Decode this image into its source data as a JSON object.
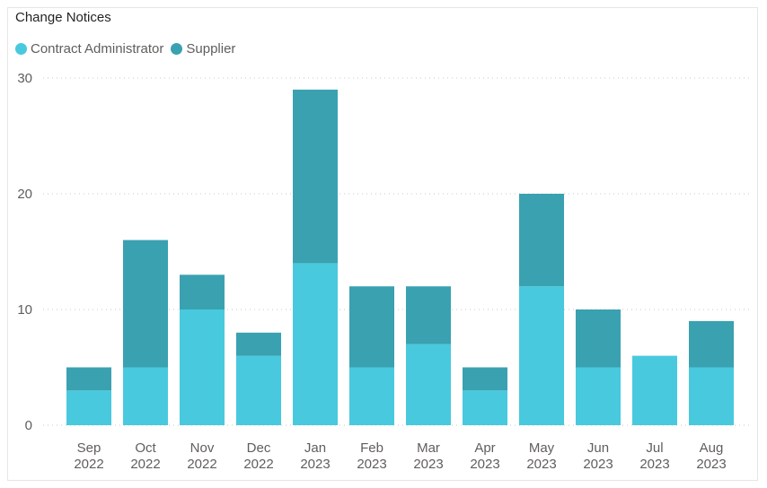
{
  "chart_data": {
    "type": "bar",
    "stacked": true,
    "title": "Change Notices",
    "categories": [
      [
        "Sep",
        "2022"
      ],
      [
        "Oct",
        "2022"
      ],
      [
        "Nov",
        "2022"
      ],
      [
        "Dec",
        "2022"
      ],
      [
        "Jan",
        "2023"
      ],
      [
        "Feb",
        "2023"
      ],
      [
        "Mar",
        "2023"
      ],
      [
        "Apr",
        "2023"
      ],
      [
        "May",
        "2023"
      ],
      [
        "Jun",
        "2023"
      ],
      [
        "Jul",
        "2023"
      ],
      [
        "Aug",
        "2023"
      ]
    ],
    "series": [
      {
        "name": "Contract Administrator",
        "color": "#48C9DE",
        "values": [
          3,
          5,
          10,
          6,
          14,
          5,
          7,
          3,
          12,
          5,
          6,
          5
        ]
      },
      {
        "name": "Supplier",
        "color": "#3AA1B0",
        "values": [
          2,
          11,
          3,
          2,
          15,
          7,
          5,
          2,
          8,
          5,
          0,
          4
        ]
      }
    ],
    "ylim": [
      0,
      30
    ],
    "yticks": [
      0,
      10,
      20,
      30
    ],
    "grid": true,
    "legend_position": "top-left"
  }
}
